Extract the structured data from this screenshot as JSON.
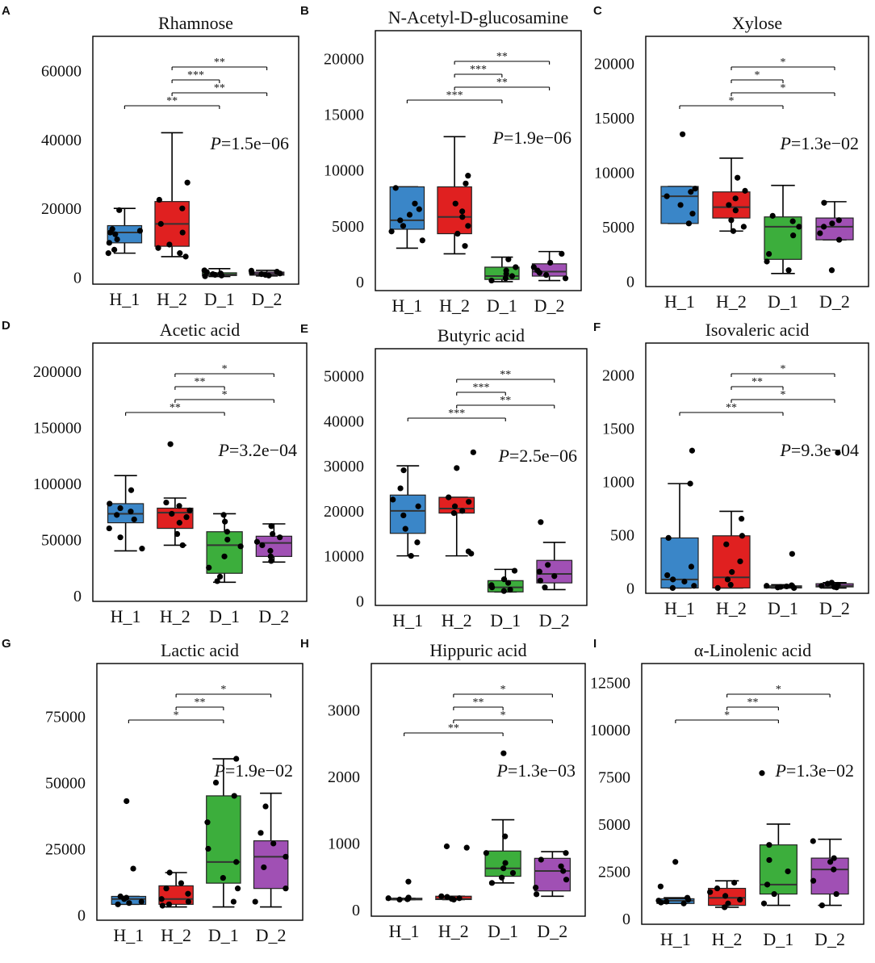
{
  "figure": {
    "categories": [
      "H_1",
      "H_2",
      "D_1",
      "D_2"
    ],
    "group_colors": [
      "#3a86c8",
      "#e02020",
      "#3cae3c",
      "#a050b4"
    ],
    "p_prefix": "P",
    "chart_data": [
      {
        "type": "box",
        "letter": "A",
        "title": "Rhamnose",
        "ylim": [
          -2000,
          70000
        ],
        "yticks": [
          0,
          20000,
          40000,
          60000
        ],
        "p_value": "=1.5e−06",
        "boxes": [
          {
            "q1": 10000,
            "median": 13000,
            "q3": 15000,
            "whisker_low": 7000,
            "whisker_high": 20000,
            "points": [
              7000,
              8000,
              10000,
              11000,
              12500,
              13000,
              13500,
              14000,
              19500
            ]
          },
          {
            "q1": 9000,
            "median": 15500,
            "q3": 22000,
            "whisker_low": 6000,
            "whisker_high": 42000,
            "points": [
              6000,
              7000,
              8500,
              9500,
              13000,
              15500,
              20000,
              22500,
              27500
            ]
          },
          {
            "q1": 500,
            "median": 800,
            "q3": 1300,
            "whisker_low": 200,
            "whisker_high": 2500,
            "points": [
              300,
              500,
              700,
              900,
              1100,
              1500,
              2000
            ]
          },
          {
            "q1": 600,
            "median": 1000,
            "q3": 1500,
            "whisker_low": 400,
            "whisker_high": 2000,
            "points": [
              500,
              700,
              900,
              1100,
              1300,
              1600,
              1900
            ]
          }
        ],
        "comparisons": [
          {
            "from": 1,
            "to": 3,
            "label": "**"
          },
          {
            "from": 1,
            "to": 2,
            "label": "***"
          },
          {
            "from": 1,
            "to": 3,
            "label": "**"
          },
          {
            "from": 0,
            "to": 2,
            "label": "**"
          }
        ]
      },
      {
        "type": "box",
        "letter": "B",
        "title": "N-Acetyl-D-glucosamine",
        "ylim": [
          -800,
          22500
        ],
        "yticks": [
          0,
          5000,
          10000,
          15000,
          20000
        ],
        "p_value": "=1.9e−06",
        "boxes": [
          {
            "q1": 4700,
            "median": 5500,
            "q3": 8500,
            "whisker_low": 3000,
            "whisker_high": 8500,
            "points": [
              3700,
              4500,
              5000,
              5500,
              6000,
              6500,
              7000,
              8400
            ]
          },
          {
            "q1": 4300,
            "median": 5800,
            "q3": 8500,
            "whisker_low": 2500,
            "whisker_high": 13000,
            "points": [
              3200,
              4300,
              5000,
              5800,
              6300,
              7000,
              8800,
              9500
            ]
          },
          {
            "q1": 200,
            "median": 500,
            "q3": 1300,
            "whisker_low": 0,
            "whisker_high": 2200,
            "points": [
              100,
              300,
              500,
              700,
              1000,
              1300,
              2000
            ]
          },
          {
            "q1": 500,
            "median": 900,
            "q3": 1600,
            "whisker_low": 100,
            "whisker_high": 2700,
            "points": [
              300,
              600,
              800,
              1000,
              1300,
              1700,
              2500
            ]
          }
        ],
        "comparisons": [
          {
            "from": 1,
            "to": 3,
            "label": "**"
          },
          {
            "from": 1,
            "to": 2,
            "label": "***"
          },
          {
            "from": 1,
            "to": 3,
            "label": "**"
          },
          {
            "from": 0,
            "to": 2,
            "label": "***"
          }
        ]
      },
      {
        "type": "box",
        "letter": "C",
        "title": "Xylose",
        "ylim": [
          -500,
          22500
        ],
        "yticks": [
          0,
          5000,
          10000,
          15000,
          20000
        ],
        "p_value": "=1.3e−02",
        "boxes": [
          {
            "q1": 5300,
            "median": 7800,
            "q3": 8700,
            "whisker_low": 5300,
            "whisker_high": 8700,
            "points": [
              5300,
              6200,
              7000,
              7800,
              8200,
              8500,
              13500
            ]
          },
          {
            "q1": 5800,
            "median": 6800,
            "q3": 8200,
            "whisker_low": 4600,
            "whisker_high": 11300,
            "points": [
              4600,
              5000,
              5600,
              6500,
              7000,
              7600,
              8300,
              9500
            ]
          },
          {
            "q1": 2000,
            "median": 5000,
            "q3": 5900,
            "whisker_low": 700,
            "whisker_high": 8800,
            "points": [
              1000,
              1800,
              2500,
              4200,
              5000,
              5500,
              6000
            ]
          },
          {
            "q1": 3800,
            "median": 5000,
            "q3": 5800,
            "whisker_low": 3800,
            "whisker_high": 7300,
            "points": [
              1000,
              3800,
              4400,
              5000,
              5300,
              5600,
              7200
            ]
          }
        ],
        "comparisons": [
          {
            "from": 1,
            "to": 3,
            "label": "*"
          },
          {
            "from": 1,
            "to": 2,
            "label": "*"
          },
          {
            "from": 1,
            "to": 3,
            "label": "*"
          },
          {
            "from": 0,
            "to": 2,
            "label": "*"
          }
        ]
      },
      {
        "type": "box",
        "letter": "D",
        "title": "Acetic acid",
        "ylim": [
          -5000,
          225000
        ],
        "yticks": [
          0,
          50000,
          100000,
          150000,
          200000
        ],
        "p_value": "=3.2e−04",
        "boxes": [
          {
            "q1": 65000,
            "median": 73000,
            "q3": 82000,
            "whisker_low": 40000,
            "whisker_high": 107000,
            "points": [
              42000,
              52000,
              60000,
              68000,
              72000,
              75000,
              78000,
              82000,
              94000
            ]
          },
          {
            "q1": 60000,
            "median": 74000,
            "q3": 78000,
            "whisker_low": 45000,
            "whisker_high": 87000,
            "points": [
              45000,
              55000,
              65000,
              70000,
              73000,
              76000,
              80000,
              83000,
              135000
            ]
          },
          {
            "q1": 20000,
            "median": 45000,
            "q3": 57000,
            "whisker_low": 12000,
            "whisker_high": 73000,
            "points": [
              13000,
              17000,
              25000,
              35000,
              44000,
              50000,
              57000,
              66000,
              72000
            ]
          },
          {
            "q1": 35000,
            "median": 47000,
            "q3": 53000,
            "whisker_low": 30000,
            "whisker_high": 64000,
            "points": [
              31000,
              35000,
              40000,
              45000,
              48000,
              52000,
              55000,
              62000
            ]
          }
        ],
        "comparisons": [
          {
            "from": 1,
            "to": 3,
            "label": "*"
          },
          {
            "from": 1,
            "to": 2,
            "label": "**"
          },
          {
            "from": 1,
            "to": 3,
            "label": "*"
          },
          {
            "from": 0,
            "to": 2,
            "label": "**"
          }
        ]
      },
      {
        "type": "box",
        "letter": "E",
        "title": "Butyric acid",
        "ylim": [
          -1000,
          56000
        ],
        "yticks": [
          0,
          10000,
          20000,
          30000,
          40000,
          50000
        ],
        "p_value": "=2.5e−06",
        "boxes": [
          {
            "q1": 15000,
            "median": 20000,
            "q3": 23500,
            "whisker_low": 10000,
            "whisker_high": 30000,
            "points": [
              10000,
              13000,
              16000,
              19000,
              21000,
              22500,
              25000,
              29000
            ]
          },
          {
            "q1": 19500,
            "median": 20500,
            "q3": 23000,
            "whisker_low": 10000,
            "whisker_high": 23000,
            "points": [
              10500,
              11000,
              19500,
              20000,
              21000,
              22000,
              23000,
              29500,
              33000
            ]
          },
          {
            "q1": 2000,
            "median": 3000,
            "q3": 4500,
            "whisker_low": 2000,
            "whisker_high": 7000,
            "points": [
              2200,
              2500,
              3000,
              3500,
              4000,
              4800,
              6700
            ]
          },
          {
            "q1": 4000,
            "median": 6000,
            "q3": 9000,
            "whisker_low": 2500,
            "whisker_high": 13000,
            "points": [
              3000,
              4500,
              5500,
              6500,
              8000,
              17500
            ]
          }
        ],
        "comparisons": [
          {
            "from": 1,
            "to": 3,
            "label": "**"
          },
          {
            "from": 1,
            "to": 2,
            "label": "***"
          },
          {
            "from": 1,
            "to": 3,
            "label": "**"
          },
          {
            "from": 0,
            "to": 2,
            "label": "***"
          }
        ]
      },
      {
        "type": "box",
        "letter": "F",
        "title": "Isovaleric acid",
        "ylim": [
          -50,
          2300
        ],
        "yticks": [
          0,
          500,
          1000,
          1500,
          2000
        ],
        "p_value": "=9.3e−04",
        "boxes": [
          {
            "q1": 0,
            "median": 80,
            "q3": 470,
            "whisker_low": 0,
            "whisker_high": 980,
            "points": [
              0,
              20,
              60,
              80,
              120,
              200,
              470,
              980,
              1290
            ]
          },
          {
            "q1": 0,
            "median": 100,
            "q3": 490,
            "whisker_low": 0,
            "whisker_high": 720,
            "points": [
              0,
              30,
              80,
              150,
              250,
              410,
              490,
              650
            ]
          },
          {
            "q1": 0,
            "median": 10,
            "q3": 20,
            "whisker_low": 0,
            "whisker_high": 30,
            "points": [
              0,
              5,
              10,
              15,
              20,
              25,
              320
            ]
          },
          {
            "q1": 10,
            "median": 20,
            "q3": 40,
            "whisker_low": 0,
            "whisker_high": 50,
            "points": [
              5,
              10,
              20,
              30,
              40,
              50,
              1270
            ]
          }
        ],
        "comparisons": [
          {
            "from": 1,
            "to": 3,
            "label": "*"
          },
          {
            "from": 1,
            "to": 2,
            "label": "**"
          },
          {
            "from": 1,
            "to": 3,
            "label": "*"
          },
          {
            "from": 0,
            "to": 2,
            "label": "**"
          }
        ]
      },
      {
        "type": "box",
        "letter": "G",
        "title": "Lactic acid",
        "ylim": [
          -2000,
          95000
        ],
        "yticks": [
          0,
          25000,
          50000,
          75000
        ],
        "p_value": "=1.9e−02",
        "boxes": [
          {
            "q1": 4000,
            "median": 6000,
            "q3": 7000,
            "whisker_low": 4000,
            "whisker_high": 7000,
            "points": [
              4000,
              4500,
              5000,
              6000,
              6500,
              7000,
              17500,
              43000
            ]
          },
          {
            "q1": 4000,
            "median": 6000,
            "q3": 11000,
            "whisker_low": 3000,
            "whisker_high": 16000,
            "points": [
              3500,
              4000,
              5000,
              6000,
              8000,
              10000,
              12000,
              16000
            ]
          },
          {
            "q1": 12000,
            "median": 20000,
            "q3": 45000,
            "whisker_low": 3000,
            "whisker_high": 59000,
            "points": [
              5000,
              10000,
              14000,
              20000,
              25000,
              35000,
              45000,
              50000,
              59000
            ]
          },
          {
            "q1": 10000,
            "median": 22000,
            "q3": 28000,
            "whisker_low": 3000,
            "whisker_high": 46000,
            "points": [
              5000,
              10000,
              18000,
              22000,
              27000,
              31000,
              41000
            ]
          }
        ],
        "comparisons": [
          {
            "from": 1,
            "to": 3,
            "label": "*"
          },
          {
            "from": 1,
            "to": 2,
            "label": "**"
          },
          {
            "from": 0,
            "to": 2,
            "label": "*"
          }
        ]
      },
      {
        "type": "box",
        "letter": "H",
        "title": "Hippuric acid",
        "ylim": [
          -100,
          3700
        ],
        "yticks": [
          0,
          1000,
          2000,
          3000
        ],
        "p_value": "=1.3e−03",
        "boxes": [
          {
            "q1": 150,
            "median": 160,
            "q3": 170,
            "whisker_low": 150,
            "whisker_high": 170,
            "points": [
              150,
              155,
              160,
              170,
              180,
              420
            ]
          },
          {
            "q1": 150,
            "median": 160,
            "q3": 200,
            "whisker_low": 150,
            "whisker_high": 200,
            "points": [
              150,
              160,
              170,
              190,
              200,
              930,
              950
            ]
          },
          {
            "q1": 500,
            "median": 620,
            "q3": 880,
            "whisker_low": 400,
            "whisker_high": 1350,
            "points": [
              400,
              480,
              550,
              620,
              700,
              850,
              1100,
              2350
            ]
          },
          {
            "q1": 280,
            "median": 580,
            "q3": 770,
            "whisker_low": 200,
            "whisker_high": 870,
            "points": [
              230,
              330,
              450,
              580,
              650,
              750,
              850
            ]
          }
        ],
        "comparisons": [
          {
            "from": 1,
            "to": 3,
            "label": "*"
          },
          {
            "from": 1,
            "to": 2,
            "label": "**"
          },
          {
            "from": 1,
            "to": 3,
            "label": "*"
          },
          {
            "from": 0,
            "to": 2,
            "label": "**"
          }
        ]
      },
      {
        "type": "box",
        "letter": "I",
        "title": "α-Linolenic acid",
        "ylim": [
          -300,
          13500
        ],
        "yticks": [
          0,
          2500,
          5000,
          7500,
          10000,
          12500
        ],
        "p_value": "=1.3e−02",
        "boxes": [
          {
            "q1": 800,
            "median": 950,
            "q3": 1050,
            "whisker_low": 800,
            "whisker_high": 1100,
            "points": [
              800,
              850,
              900,
              950,
              1000,
              1100,
              1700,
              3000
            ]
          },
          {
            "q1": 700,
            "median": 1100,
            "q3": 1600,
            "whisker_low": 600,
            "whisker_high": 2000,
            "points": [
              600,
              800,
              1000,
              1200,
              1400,
              1600,
              1900
            ]
          },
          {
            "q1": 1300,
            "median": 1800,
            "q3": 3900,
            "whisker_low": 700,
            "whisker_high": 5000,
            "points": [
              800,
              1300,
              1800,
              2500,
              3100,
              3900,
              7700
            ]
          },
          {
            "q1": 1300,
            "median": 2600,
            "q3": 3200,
            "whisker_low": 700,
            "whisker_high": 4200,
            "points": [
              700,
              1300,
              2000,
              2600,
              3000,
              3200,
              4100
            ]
          }
        ],
        "comparisons": [
          {
            "from": 1,
            "to": 3,
            "label": "*"
          },
          {
            "from": 1,
            "to": 2,
            "label": "**"
          },
          {
            "from": 0,
            "to": 2,
            "label": "*"
          }
        ]
      }
    ]
  }
}
